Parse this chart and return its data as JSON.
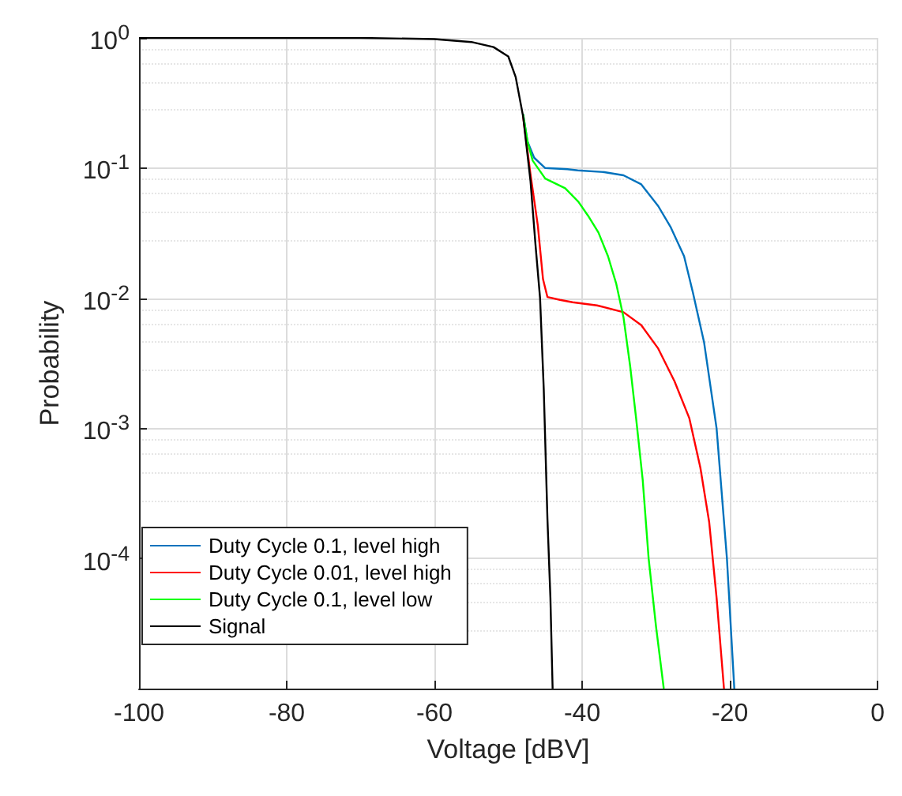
{
  "chart_data": {
    "type": "line",
    "xlabel": "Voltage [dBV]",
    "ylabel": "Probability",
    "log": "y",
    "xlim": [
      -100,
      0
    ],
    "xticks": [
      -100,
      -80,
      -60,
      -40,
      -20,
      0
    ],
    "ylim": [
      1e-05,
      1
    ],
    "yticks": [
      {
        "value": 0.0001,
        "label": "10$^{-4}$"
      },
      {
        "value": 0.001,
        "label": "10$^{-3}$"
      },
      {
        "value": 0.01,
        "label": "10$^{-2}$"
      },
      {
        "value": 0.1,
        "label": "10$^{-1}$"
      },
      {
        "value": 1,
        "label": "10$^{0}$"
      }
    ],
    "grid": true,
    "legend": "bottom left",
    "line_style": "solid",
    "marker": "none",
    "series": [
      {
        "name": "Duty Cycle 0.1, level high",
        "color": "#0072bd",
        "x": [
          -48,
          -47.4,
          -46.5,
          -45,
          -42,
          -40.6,
          -37,
          -34.4,
          -32,
          -29.7,
          -28,
          -26.2,
          -25,
          -23.5,
          -21.8,
          -20.4,
          -19.4
        ],
        "values": [
          0.26,
          0.16,
          0.12,
          0.1,
          0.098,
          0.096,
          0.093,
          0.088,
          0.075,
          0.051,
          0.035,
          0.021,
          0.011,
          0.0046,
          0.001,
          0.0001,
          1e-05
        ]
      },
      {
        "name": "Duty Cycle 0.01, level high",
        "color": "#ff0000",
        "x": [
          -48,
          -47,
          -46,
          -45.3,
          -44.7,
          -43,
          -41.3,
          -38,
          -34.4,
          -32,
          -29.7,
          -27.5,
          -25.5,
          -24,
          -22.8,
          -21.8,
          -20.8
        ],
        "values": [
          0.25,
          0.09,
          0.036,
          0.014,
          0.0102,
          0.0097,
          0.0093,
          0.0088,
          0.0078,
          0.0062,
          0.0041,
          0.0023,
          0.0012,
          0.0005,
          0.00019,
          5e-05,
          1e-05
        ]
      },
      {
        "name": "Duty Cycle 0.1, level low",
        "color": "#00ff00",
        "x": [
          -48,
          -47.4,
          -46.7,
          -45,
          -42.3,
          -40.5,
          -39.2,
          -37.8,
          -36.5,
          -35.4,
          -34.4,
          -33.5,
          -32.7,
          -31.8,
          -31,
          -30,
          -28.95
        ],
        "values": [
          0.26,
          0.16,
          0.114,
          0.083,
          0.07,
          0.055,
          0.043,
          0.032,
          0.021,
          0.013,
          0.0071,
          0.003,
          0.0012,
          0.0004,
          0.0001,
          3e-05,
          1e-05
        ]
      },
      {
        "name": "Signal",
        "color": "#000000",
        "x": [
          -100,
          -80,
          -70,
          -60,
          -55,
          -52,
          -50,
          -49,
          -48,
          -47,
          -46.3,
          -45.7,
          -45.2,
          -44.7,
          -44.3,
          -44
        ],
        "values": [
          1,
          1,
          1,
          0.98,
          0.93,
          0.85,
          0.72,
          0.5,
          0.25,
          0.08,
          0.025,
          0.01,
          0.002,
          0.0002,
          5e-05,
          1e-05
        ]
      }
    ]
  }
}
